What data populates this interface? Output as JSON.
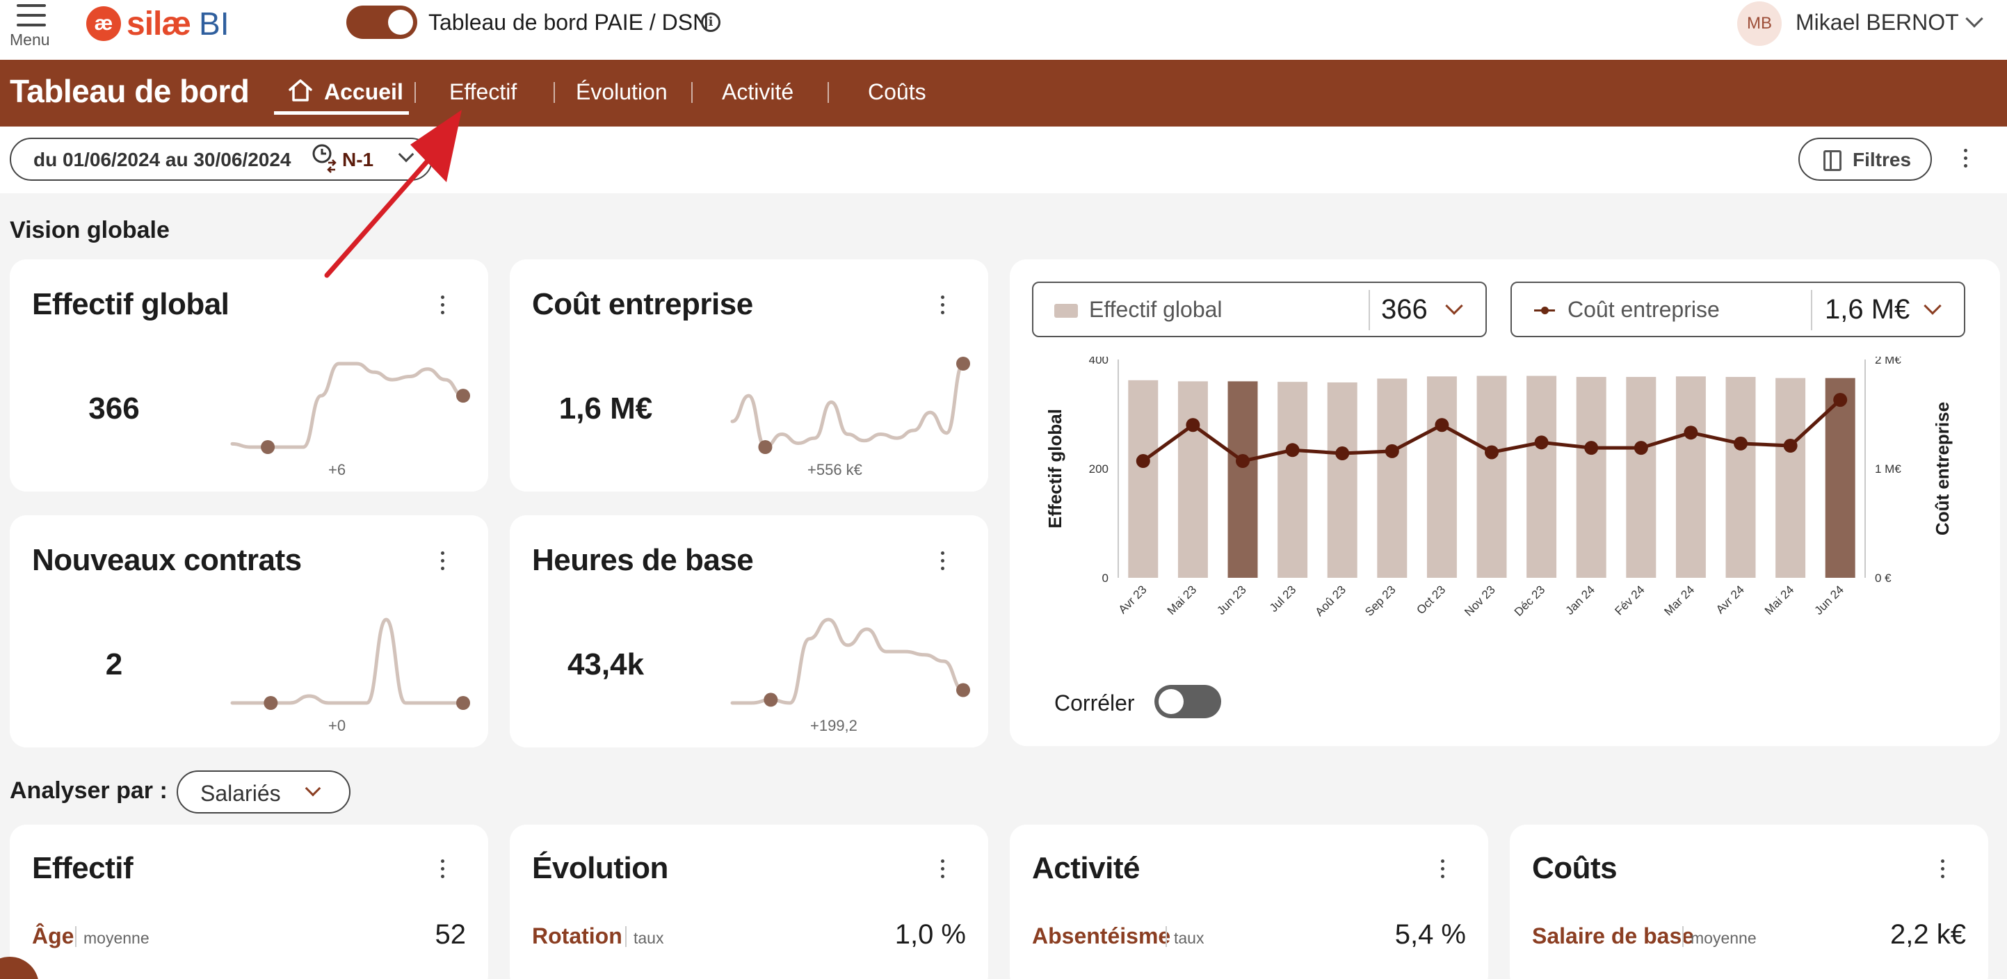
{
  "topbar": {
    "menu_label": "Menu",
    "logo_mark": "æ",
    "logo_text": "silæ",
    "logo_bi": "BI",
    "toggle_label": "Tableau de bord PAIE / DSN",
    "toggle_on": true,
    "info_glyph": "i",
    "user_initials": "MB",
    "user_name": "Mikael BERNOT"
  },
  "nav": {
    "title": "Tableau de bord",
    "tabs": [
      {
        "label": "Accueil",
        "active": true
      },
      {
        "label": "Effectif"
      },
      {
        "label": "Évolution"
      },
      {
        "label": "Activité"
      },
      {
        "label": "Coûts"
      }
    ]
  },
  "daterow": {
    "period": "du 01/06/2024 au 30/06/2024",
    "compare": "N-1",
    "filters_label": "Filtres"
  },
  "sections": {
    "vision": "Vision globale",
    "analyse": "Analyser par :",
    "analyse_value": "Salariés"
  },
  "kpis": [
    {
      "title": "Effectif global",
      "value": "366",
      "delta": "+6"
    },
    {
      "title": "Coût entreprise",
      "value": "1,6 M€",
      "delta": "+556 k€"
    },
    {
      "title": "Nouveaux contrats",
      "value": "2",
      "delta": "+0"
    },
    {
      "title": "Heures de base",
      "value": "43,4k",
      "delta": "+199,2"
    }
  ],
  "combo": {
    "bar_selector": {
      "label": "Effectif global",
      "value": "366"
    },
    "line_selector": {
      "label": "Coût entreprise",
      "value": "1,6 M€"
    },
    "correlate_label": "Corréler",
    "correlate_on": false
  },
  "chart_data": {
    "type": "bar",
    "categories": [
      "Avr 23",
      "Mai 23",
      "Jun 23",
      "Jul 23",
      "Aoû 23",
      "Sep 23",
      "Oct 23",
      "Nov 23",
      "Déc 23",
      "Jan 24",
      "Fév 24",
      "Mar 24",
      "Avr 24",
      "Mai 24",
      "Jun 24"
    ],
    "series": [
      {
        "name": "Effectif global",
        "kind": "bar",
        "axis": "left",
        "values": [
          362,
          360,
          360,
          359,
          358,
          365,
          369,
          370,
          370,
          368,
          368,
          369,
          368,
          366,
          366
        ],
        "highlight": [
          2,
          14
        ]
      },
      {
        "name": "Coût entreprise",
        "kind": "line",
        "axis": "right",
        "values": [
          1.07,
          1.4,
          1.07,
          1.17,
          1.14,
          1.16,
          1.4,
          1.15,
          1.24,
          1.19,
          1.19,
          1.33,
          1.23,
          1.21,
          1.63
        ]
      }
    ],
    "ylabel": "Effectif global",
    "y2label": "Coût entreprise",
    "ylim": [
      0,
      400
    ],
    "yticks": [
      "0",
      "200",
      "400"
    ],
    "y2lim": [
      0,
      2
    ],
    "y2ticks": [
      "0 €",
      "1 M€",
      "2 M€"
    ],
    "colors": {
      "bar": "#d2c2ba",
      "bar_highlight": "#8c6656",
      "line": "#5c1c0c"
    }
  },
  "sparklines": {
    "color": "#d2c2ba",
    "dot_color": "#8c6656",
    "effectif": [
      355,
      352,
      352,
      352,
      352,
      400,
      430,
      430,
      422,
      415,
      418,
      425,
      415,
      400
    ],
    "cout": [
      1.25,
      1.45,
      1.05,
      1.15,
      1.08,
      1.12,
      1.4,
      1.15,
      1.1,
      1.15,
      1.12,
      1.18,
      1.32,
      1.16,
      1.7
    ],
    "contrats": [
      2,
      2,
      2,
      2,
      3,
      2,
      2,
      2,
      14,
      2,
      2,
      2,
      2
    ],
    "heures": [
      43.2,
      43.2,
      43.3,
      43.2,
      45.2,
      45.8,
      45.0,
      45.5,
      44.8,
      44.8,
      44.7,
      44.5,
      43.6
    ]
  },
  "bottom_cards": [
    {
      "title": "Effectif",
      "metric": "Âge",
      "sub": "moyenne",
      "value": "52"
    },
    {
      "title": "Évolution",
      "metric": "Rotation",
      "sub": "taux",
      "value": "1,0 %"
    },
    {
      "title": "Activité",
      "metric": "Absentéisme",
      "sub": "taux",
      "value": "5,4 %"
    },
    {
      "title": "Coûts",
      "metric": "Salaire de base",
      "sub": "moyenne",
      "value": "2,2 k€"
    }
  ],
  "annotation": {
    "arrow_color": "#d71f26"
  }
}
